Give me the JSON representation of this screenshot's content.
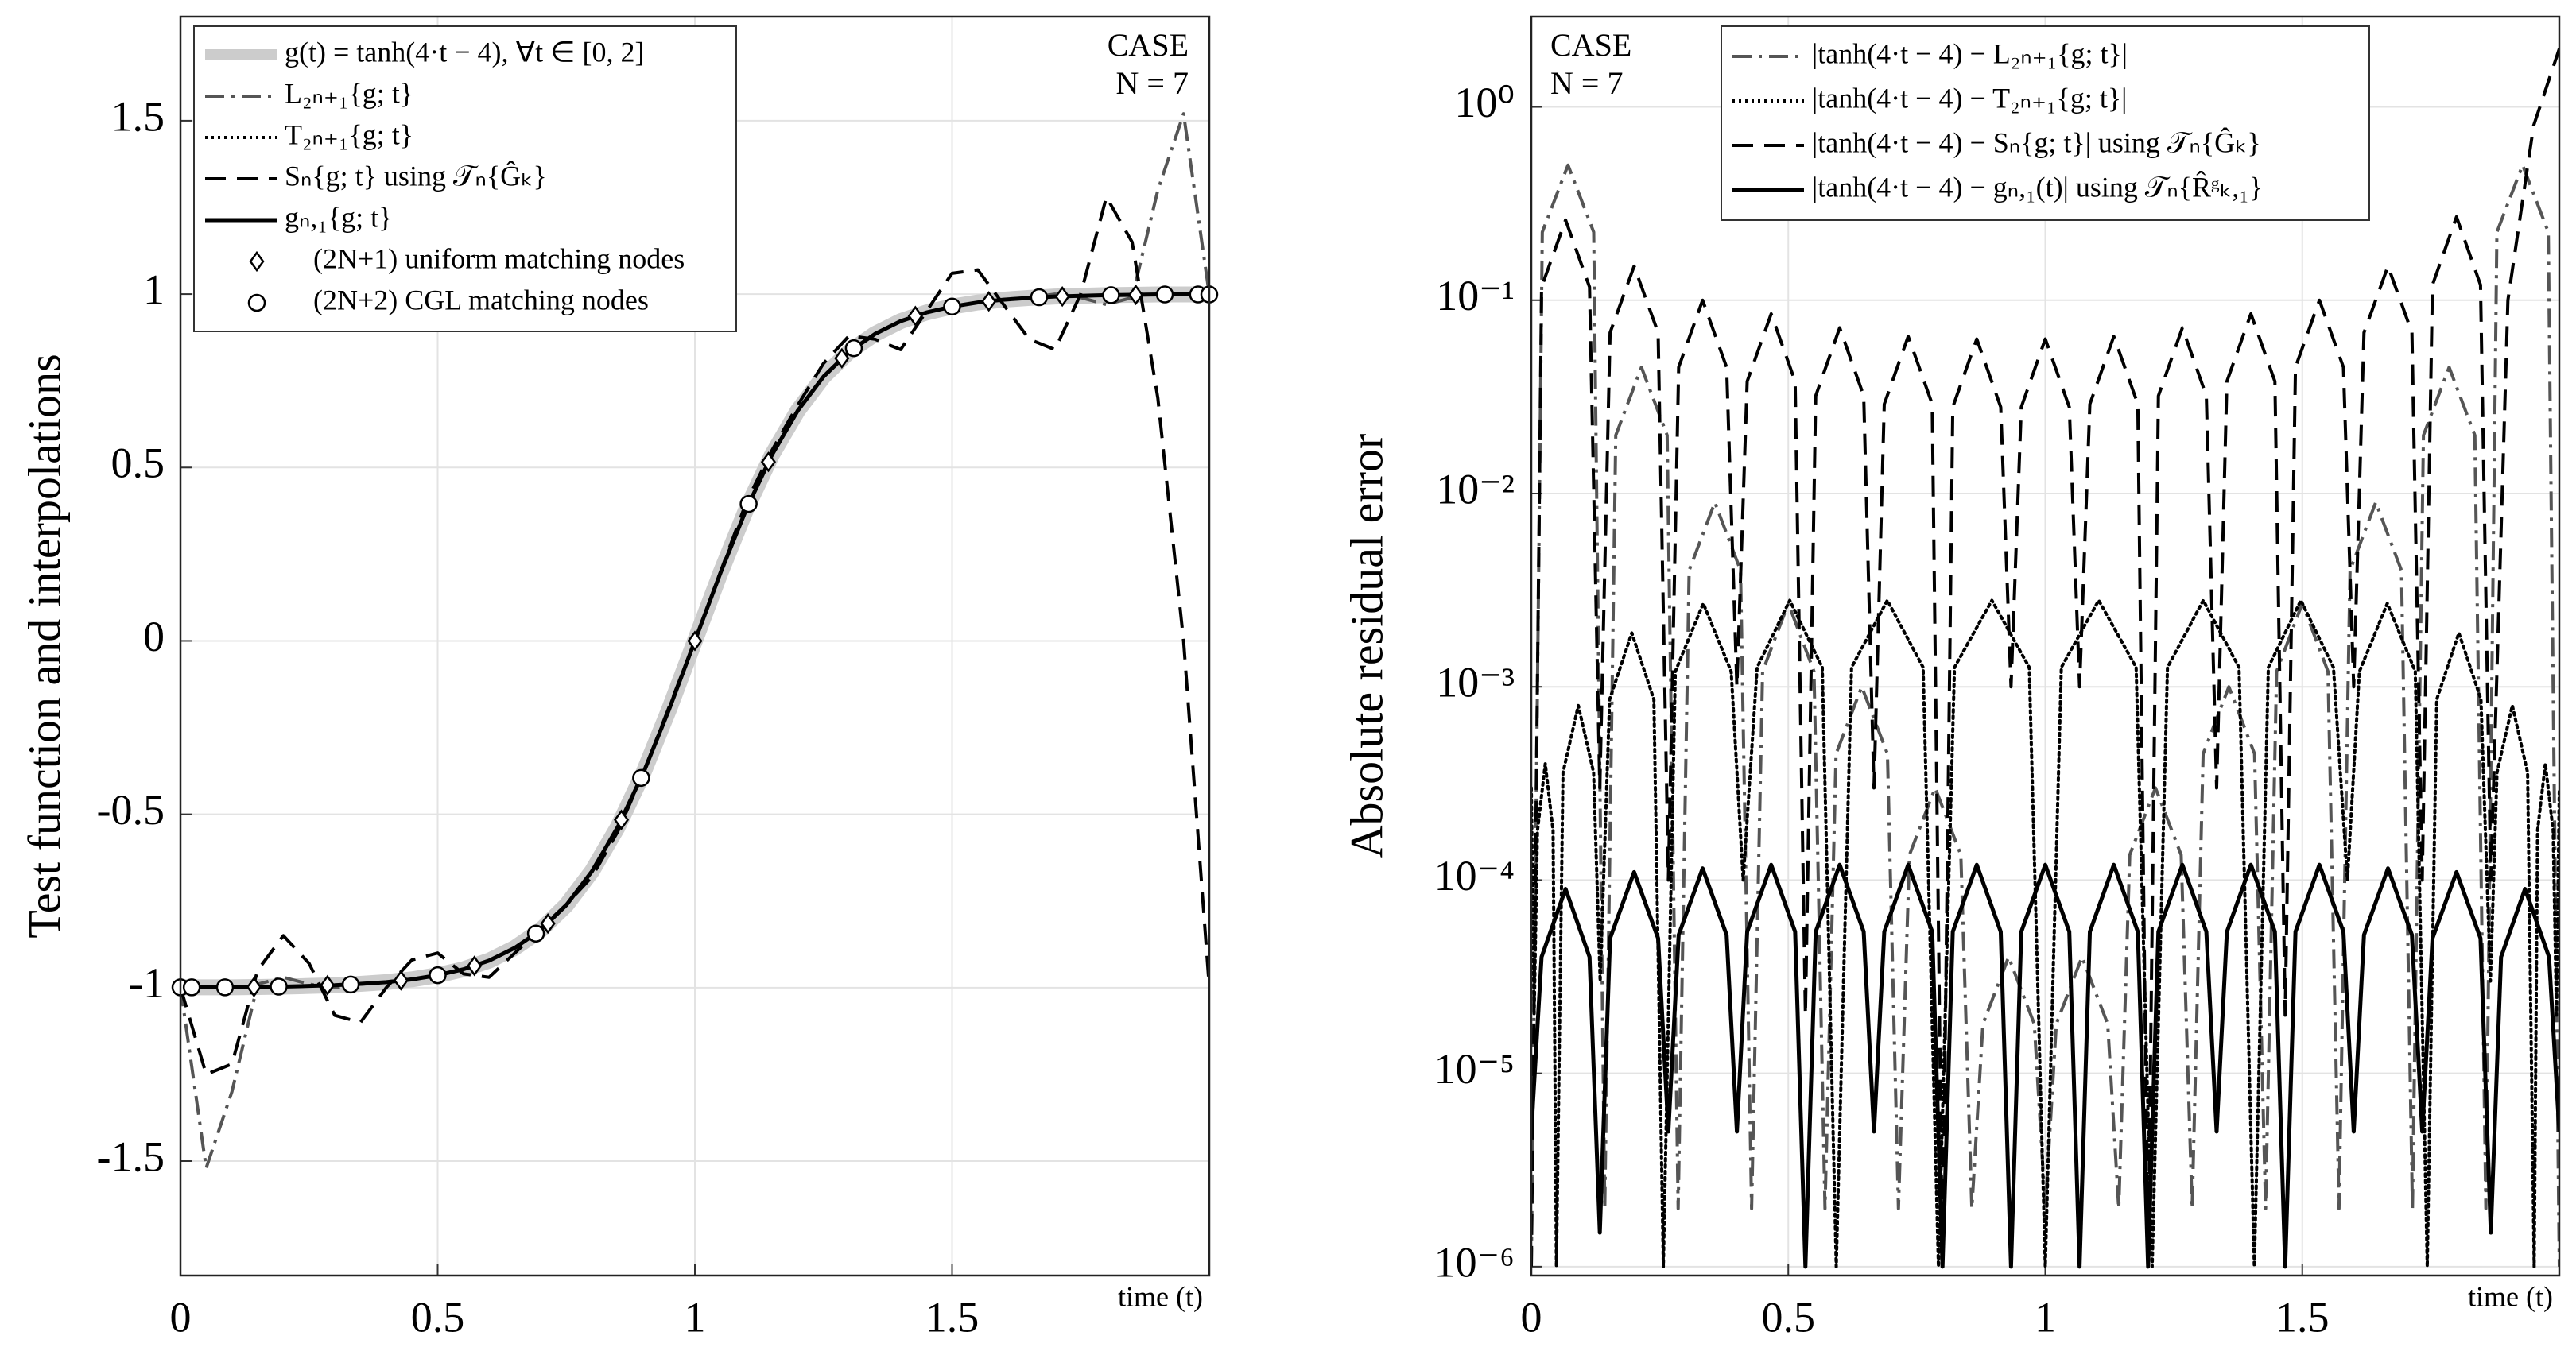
{
  "chart_data": [
    {
      "type": "line",
      "ylabel": "Test function and interpolations",
      "xlabel": "time (t)",
      "annotation": [
        "CASE",
        "N = 7"
      ],
      "legend": "upper left",
      "grid": true,
      "log": false,
      "xlim": [
        0,
        2
      ],
      "ylim": [
        -1.83,
        1.8
      ],
      "xticks": [
        0,
        0.5,
        1,
        1.5
      ],
      "yticks": [
        -1.5,
        -1,
        -0.5,
        0,
        0.5,
        1,
        1.5
      ],
      "x": [
        0,
        0.05,
        0.1,
        0.15,
        0.2,
        0.25,
        0.3,
        0.35,
        0.4,
        0.45,
        0.5,
        0.55,
        0.6,
        0.65,
        0.7,
        0.75,
        0.8,
        0.85,
        0.9,
        0.95,
        1,
        1.05,
        1.1,
        1.15,
        1.2,
        1.25,
        1.3,
        1.35,
        1.4,
        1.45,
        1.5,
        1.55,
        1.6,
        1.65,
        1.7,
        1.75,
        1.8,
        1.85,
        1.9,
        1.95,
        2
      ],
      "series": [
        {
          "name": "g(t) = tanh(4·t − 4), ∀t ∈ [0, 2]",
          "color": "#cccccc",
          "style": "solid",
          "width": 20,
          "values": [
            -0.999,
            -0.999,
            -0.999,
            -0.998,
            -0.997,
            -0.995,
            -0.993,
            -0.989,
            -0.984,
            -0.976,
            -0.964,
            -0.947,
            -0.922,
            -0.885,
            -0.834,
            -0.762,
            -0.664,
            -0.537,
            -0.38,
            -0.197,
            0,
            0.197,
            0.38,
            0.537,
            0.664,
            0.762,
            0.834,
            0.885,
            0.922,
            0.947,
            0.964,
            0.976,
            0.984,
            0.989,
            0.993,
            0.995,
            0.997,
            0.998,
            0.999,
            0.999,
            0.999
          ]
        },
        {
          "name": "L₂ₙ₊₁{g; t}",
          "color": "#555555",
          "style": "dashdot",
          "width": 4,
          "values": [
            -0.999,
            -1.52,
            -1.3,
            -0.99,
            -0.97,
            -0.99,
            -1.0,
            -0.99,
            -0.984,
            -0.976,
            -0.964,
            -0.947,
            -0.922,
            -0.885,
            -0.834,
            -0.762,
            -0.664,
            -0.537,
            -0.38,
            -0.197,
            0,
            0.197,
            0.38,
            0.537,
            0.664,
            0.762,
            0.834,
            0.885,
            0.922,
            0.947,
            0.964,
            0.976,
            0.984,
            0.99,
            1.0,
            0.99,
            0.97,
            0.99,
            1.3,
            1.52,
            0.999
          ]
        },
        {
          "name": "T₂ₙ₊₁{g; t}",
          "color": "#000000",
          "style": "dotted",
          "width": 4,
          "values": [
            -0.999,
            -0.999,
            -0.999,
            -0.998,
            -0.997,
            -0.995,
            -0.993,
            -0.989,
            -0.984,
            -0.976,
            -0.964,
            -0.947,
            -0.922,
            -0.885,
            -0.834,
            -0.762,
            -0.664,
            -0.537,
            -0.38,
            -0.197,
            0,
            0.197,
            0.38,
            0.537,
            0.664,
            0.762,
            0.834,
            0.885,
            0.922,
            0.947,
            0.964,
            0.976,
            0.984,
            0.989,
            0.993,
            0.995,
            0.997,
            0.998,
            0.999,
            0.999,
            0.999
          ]
        },
        {
          "name": "Sₙ{g; t} using 𝒯ₙ{Ĝₖ}",
          "color": "#000000",
          "style": "dashed",
          "width": 4,
          "values": [
            -0.999,
            -1.25,
            -1.22,
            -0.95,
            -0.85,
            -0.93,
            -1.08,
            -1.1,
            -1.0,
            -0.92,
            -0.9,
            -0.96,
            -0.97,
            -0.9,
            -0.83,
            -0.76,
            -0.68,
            -0.55,
            -0.38,
            -0.19,
            0,
            0.2,
            0.4,
            0.55,
            0.68,
            0.8,
            0.88,
            0.87,
            0.84,
            0.95,
            1.06,
            1.07,
            0.97,
            0.87,
            0.84,
            1.0,
            1.28,
            1.15,
            0.7,
            0.0,
            -0.999
          ]
        },
        {
          "name": "gₙ,₁{g; t}",
          "color": "#000000",
          "style": "solid",
          "width": 5,
          "values": [
            -0.999,
            -0.999,
            -0.999,
            -0.998,
            -0.997,
            -0.995,
            -0.993,
            -0.989,
            -0.984,
            -0.976,
            -0.964,
            -0.947,
            -0.922,
            -0.885,
            -0.834,
            -0.762,
            -0.664,
            -0.537,
            -0.38,
            -0.197,
            0,
            0.197,
            0.38,
            0.537,
            0.664,
            0.762,
            0.834,
            0.885,
            0.922,
            0.947,
            0.964,
            0.976,
            0.984,
            0.989,
            0.993,
            0.995,
            0.997,
            0.998,
            0.999,
            0.999,
            0.999
          ]
        },
        {
          "name": "(2N+1) uniform matching nodes",
          "color": "#000000",
          "marker": "diamond",
          "x": [
            0,
            0.1429,
            0.2857,
            0.4286,
            0.5714,
            0.7143,
            0.8571,
            1,
            1.1429,
            1.2857,
            1.4286,
            1.5714,
            1.7143,
            1.8571,
            2
          ],
          "values": [
            -0.999,
            -0.998,
            -0.993,
            -0.979,
            -0.937,
            -0.815,
            -0.516,
            0,
            0.516,
            0.815,
            0.937,
            0.979,
            0.993,
            0.998,
            0.999
          ]
        },
        {
          "name": "(2N+2) CGL matching nodes",
          "color": "#000000",
          "marker": "circle",
          "x": [
            0,
            0.0219,
            0.0865,
            0.191,
            0.3309,
            0.5,
            0.691,
            0.8955,
            1.1045,
            1.309,
            1.5,
            1.6691,
            1.809,
            1.9135,
            1.9781,
            2
          ],
          "values": [
            -0.999,
            -0.999,
            -0.999,
            -0.997,
            -0.991,
            -0.964,
            -0.844,
            -0.395,
            0.395,
            0.844,
            0.964,
            0.991,
            0.997,
            0.999,
            0.999,
            0.999
          ]
        }
      ]
    },
    {
      "type": "line",
      "ylabel": "Absolute residual error",
      "xlabel": "time (t)",
      "annotation": [
        "CASE",
        "N = 7"
      ],
      "legend": "upper center",
      "grid": true,
      "log": true,
      "xlim": [
        0,
        2
      ],
      "ylim": [
        9e-07,
        2.93
      ],
      "xticks": [
        0,
        0.5,
        1,
        1.5
      ],
      "yticks": [
        {
          "value": 1e-06,
          "label": "10⁻⁶"
        },
        {
          "value": 1e-05,
          "label": "10⁻⁵"
        },
        {
          "value": 0.0001,
          "label": "10⁻⁴"
        },
        {
          "value": 0.001,
          "label": "10⁻³"
        },
        {
          "value": 0.01,
          "label": "10⁻²"
        },
        {
          "value": 0.1,
          "label": "10⁻¹"
        },
        {
          "value": 1,
          "label": "10⁰"
        }
      ],
      "series": [
        {
          "name": "|tanh(4·t − 4) − L₂ₙ₊₁{g; t}|",
          "color": "#555555",
          "style": "dashdot",
          "width": 4,
          "x": [
            0,
            0.0214,
            0.0714,
            0.1214,
            0.1429,
            0.1643,
            0.2143,
            0.2643,
            0.2857,
            0.3071,
            0.3571,
            0.4071,
            0.4286,
            0.45,
            0.5,
            0.55,
            0.5714,
            0.5929,
            0.6429,
            0.6929,
            0.7143,
            0.7357,
            0.7857,
            0.8357,
            0.8571,
            0.8786,
            0.9286,
            0.9786,
            1,
            1.0214,
            1.0714,
            1.1214,
            1.1429,
            1.1643,
            1.2143,
            1.2643,
            1.2857,
            1.3071,
            1.3571,
            1.4071,
            1.4286,
            1.45,
            1.5,
            1.55,
            1.5714,
            1.5929,
            1.6429,
            1.6929,
            1.7143,
            1.7357,
            1.7857,
            1.8357,
            1.8571,
            1.8786,
            1.9286,
            1.9786,
            2
          ],
          "values": [
            1e-06,
            0.225,
            0.5,
            0.225,
            2e-06,
            0.02,
            0.045,
            0.02,
            2e-06,
            0.004,
            0.009,
            0.004,
            2e-06,
            0.0012,
            0.0027,
            0.0012,
            2e-06,
            0.00045,
            0.001,
            0.00045,
            2e-06,
            0.000135,
            0.0003,
            0.000135,
            2e-06,
            1.8e-05,
            4e-05,
            1.8e-05,
            2e-06,
            1.8e-05,
            4e-05,
            1.8e-05,
            2e-06,
            0.000135,
            0.0003,
            0.000135,
            2e-06,
            0.00045,
            0.001,
            0.00045,
            2e-06,
            0.0012,
            0.0027,
            0.0012,
            2e-06,
            0.004,
            0.009,
            0.004,
            2e-06,
            0.02,
            0.045,
            0.02,
            2e-06,
            0.225,
            0.5,
            0.225,
            1e-06
          ]
        },
        {
          "name": "|tanh(4·t − 4) − T₂ₙ₊₁{g; t}|",
          "color": "#000000",
          "style": "dotted",
          "width": 4,
          "x": [
            0,
            0.0055,
            0.012,
            0.0272,
            0.0424,
            0.0489,
            0.0617,
            0.0915,
            0.1212,
            0.134,
            0.1524,
            0.1955,
            0.2385,
            0.2569,
            0.2802,
            0.3346,
            0.3889,
            0.4122,
            0.4394,
            0.5028,
            0.5661,
            0.5933,
            0.6231,
            0.6927,
            0.7623,
            0.7921,
            0.8233,
            0.8961,
            0.9688,
            1,
            1.0312,
            1.1039,
            1.1767,
            1.2079,
            1.2377,
            1.3073,
            1.3769,
            1.4067,
            1.4339,
            1.4972,
            1.5606,
            1.5878,
            1.6111,
            1.6654,
            1.7198,
            1.7431,
            1.7615,
            1.8046,
            1.8476,
            1.866,
            1.8788,
            1.9086,
            1.9383,
            1.9511,
            1.9576,
            1.9728,
            1.988,
            1.9945,
            2
          ],
          "values": [
            0.0003,
            2e-05,
            0.00018,
            0.0004,
            0.00018,
            1e-06,
            0.00036,
            0.0008,
            0.00036,
            3e-05,
            0.00086,
            0.0019,
            0.00086,
            1e-06,
            0.0012,
            0.0027,
            0.0012,
            0.0001,
            0.00126,
            0.0028,
            0.00126,
            1e-06,
            0.00126,
            0.0028,
            0.00126,
            1e-06,
            0.00126,
            0.0028,
            0.00126,
            1e-06,
            0.00126,
            0.0028,
            0.00126,
            1e-06,
            0.00126,
            0.0028,
            0.00126,
            1e-06,
            0.00126,
            0.0028,
            0.00126,
            0.0001,
            0.0012,
            0.0027,
            0.0012,
            1e-06,
            0.00086,
            0.0019,
            0.00086,
            3e-05,
            0.00036,
            0.0008,
            0.00036,
            1e-06,
            0.00018,
            0.0004,
            0.00018,
            2e-05,
            0.0003
          ]
        },
        {
          "name": "|tanh(4·t − 4) − Sₙ{g; t}| using 𝒯ₙ{Ĝₖ}",
          "color": "#000000",
          "style": "dashed",
          "width": 4,
          "x": [
            0,
            0.02,
            0.0667,
            0.1133,
            0.1333,
            0.1533,
            0.2,
            0.2467,
            0.2667,
            0.2867,
            0.3333,
            0.38,
            0.4,
            0.42,
            0.4667,
            0.5133,
            0.5333,
            0.5533,
            0.6,
            0.6467,
            0.6667,
            0.6867,
            0.7333,
            0.78,
            0.8,
            0.82,
            0.8667,
            0.9133,
            0.9333,
            0.9533,
            1,
            1.0467,
            1.0667,
            1.0867,
            1.1333,
            1.18,
            1.2,
            1.22,
            1.2667,
            1.3133,
            1.3333,
            1.3533,
            1.4,
            1.4467,
            1.4667,
            1.4867,
            1.5333,
            1.58,
            1.6,
            1.62,
            1.6667,
            1.7133,
            1.7333,
            1.7533,
            1.8,
            1.8467,
            1.8667,
            1.9,
            1.95,
            2
          ],
          "values": [
            1e-06,
            0.117,
            0.26,
            0.117,
            0.0003,
            0.068,
            0.15,
            0.068,
            0.0001,
            0.045,
            0.1,
            0.045,
            0.001,
            0.038,
            0.085,
            0.038,
            2e-05,
            0.032,
            0.072,
            0.032,
            0.0003,
            0.029,
            0.065,
            0.029,
            1e-06,
            0.028,
            0.063,
            0.028,
            0.001,
            0.028,
            0.063,
            0.028,
            0.001,
            0.029,
            0.065,
            0.029,
            1e-06,
            0.032,
            0.072,
            0.032,
            0.0003,
            0.038,
            0.085,
            0.038,
            2e-05,
            0.045,
            0.1,
            0.045,
            0.001,
            0.068,
            0.15,
            0.068,
            0.0001,
            0.12,
            0.27,
            0.12,
            0.0001,
            0.1,
            0.8,
            2
          ]
        },
        {
          "name": "|tanh(4·t − 4) − gₙ,₁(t)| using 𝒯ₙ{R̂ᵍₖ,₁}",
          "color": "#000000",
          "style": "solid",
          "width": 5,
          "x": [
            0,
            0.02,
            0.0667,
            0.1133,
            0.1333,
            0.1533,
            0.2,
            0.2467,
            0.2667,
            0.2867,
            0.3333,
            0.38,
            0.4,
            0.42,
            0.4667,
            0.5133,
            0.5333,
            0.5533,
            0.6,
            0.6467,
            0.6667,
            0.6867,
            0.7333,
            0.78,
            0.8,
            0.82,
            0.8667,
            0.9133,
            0.9333,
            0.9533,
            1,
            1.0467,
            1.0667,
            1.0867,
            1.1333,
            1.18,
            1.2,
            1.22,
            1.2667,
            1.3133,
            1.3333,
            1.3533,
            1.4,
            1.4467,
            1.4667,
            1.4867,
            1.5333,
            1.58,
            1.6,
            1.62,
            1.6667,
            1.7133,
            1.7333,
            1.7533,
            1.8,
            1.8467,
            1.8667,
            1.8867,
            1.9333,
            1.98,
            2
          ],
          "values": [
            5e-06,
            4e-05,
            9e-05,
            4e-05,
            1.5e-06,
            5e-05,
            0.00011,
            5e-05,
            5e-06,
            5.2e-05,
            0.000115,
            5.2e-05,
            5e-06,
            5.4e-05,
            0.00012,
            5.4e-05,
            1e-06,
            5.4e-05,
            0.00012,
            5.4e-05,
            5e-06,
            5.4e-05,
            0.00012,
            5.4e-05,
            1e-06,
            5.4e-05,
            0.00012,
            5.4e-05,
            1e-06,
            5.4e-05,
            0.00012,
            5.4e-05,
            1e-06,
            5.4e-05,
            0.00012,
            5.4e-05,
            1e-06,
            5.4e-05,
            0.00012,
            5.4e-05,
            5e-06,
            5.4e-05,
            0.00012,
            5.4e-05,
            1e-06,
            5.4e-05,
            0.00012,
            5.4e-05,
            5e-06,
            5.2e-05,
            0.000115,
            5.2e-05,
            5e-06,
            5e-05,
            0.00011,
            5e-05,
            1.5e-06,
            4e-05,
            9e-05,
            4e-05,
            5e-06
          ]
        }
      ]
    }
  ]
}
